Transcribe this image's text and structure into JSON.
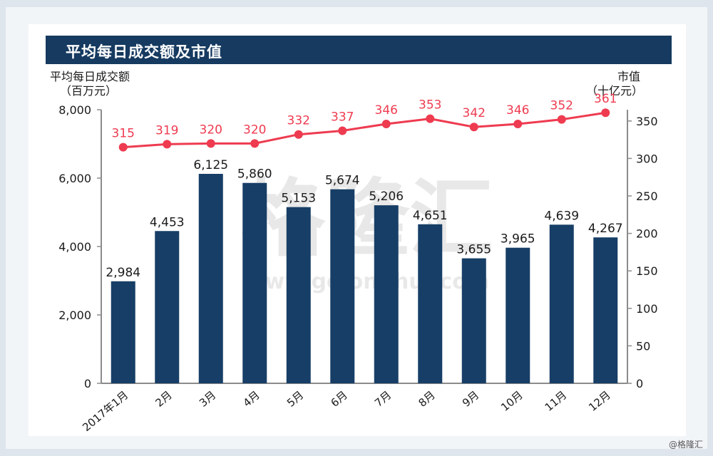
{
  "title": "平均每日成交额及市值",
  "left_axis_title": "平均每日成交额",
  "left_axis_unit": "（百万元）",
  "right_axis_title": "市值",
  "right_axis_unit": "（十亿元）",
  "watermark": "格隆汇",
  "watermark_url": "www.gelonghui.com",
  "credit": "@格隆汇",
  "colors": {
    "bar": "#173e66",
    "line": "#ee3b50",
    "title_bg": "#163a60"
  },
  "chart_data": {
    "type": "bar",
    "categories": [
      "2017年1月",
      "2月",
      "3月",
      "4月",
      "5月",
      "6月",
      "7月",
      "8月",
      "9月",
      "10月",
      "11月",
      "12月"
    ],
    "series": [
      {
        "name": "平均每日成交额",
        "type": "bar",
        "axis": "left",
        "values": [
          2984,
          4453,
          6125,
          5860,
          5153,
          5674,
          5206,
          4651,
          3655,
          3965,
          4639,
          4267
        ],
        "labels": [
          "2,984",
          "4,453",
          "6,125",
          "5,860",
          "5,153",
          "5,674",
          "5,206",
          "4,651",
          "3,655",
          "3,965",
          "4,639",
          "4,267"
        ]
      },
      {
        "name": "市值",
        "type": "line",
        "axis": "right",
        "values": [
          315,
          319,
          320,
          320,
          332,
          337,
          346,
          353,
          342,
          346,
          352,
          361
        ],
        "labels": [
          "315",
          "319",
          "320",
          "320",
          "332",
          "337",
          "346",
          "353",
          "342",
          "346",
          "352",
          "361"
        ]
      }
    ],
    "y_left": {
      "lim": [
        0,
        8000
      ],
      "ticks": [
        0,
        2000,
        4000,
        6000,
        8000
      ],
      "tick_labels": [
        "0",
        "2,000",
        "4,000",
        "6,000",
        "8,000"
      ]
    },
    "y_right": {
      "lim": [
        0,
        365
      ],
      "ticks": [
        0,
        50,
        100,
        150,
        200,
        250,
        300,
        350
      ],
      "tick_labels": [
        "0",
        "50",
        "100",
        "150",
        "200",
        "250",
        "300",
        "350"
      ]
    },
    "grid": false
  }
}
